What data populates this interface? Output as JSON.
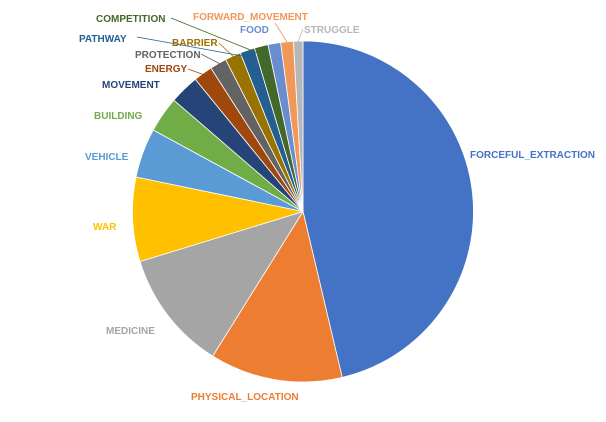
{
  "chart_data": {
    "type": "pie",
    "start_angle_deg": 0,
    "direction": "clockwise",
    "slices": [
      {
        "label": "FORCEFUL_EXTRACTION",
        "value": 46.4,
        "color": "#4472C4"
      },
      {
        "label": "PHYSICAL_LOCATION",
        "value": 12.6,
        "color": "#ED7D31"
      },
      {
        "label": "MEDICINE",
        "value": 11.4,
        "color": "#A5A5A5"
      },
      {
        "label": "WAR",
        "value": 8.0,
        "color": "#FFC000"
      },
      {
        "label": "VEHICLE",
        "value": 4.7,
        "color": "#5B9BD5"
      },
      {
        "label": "BUILDING",
        "value": 3.4,
        "color": "#70AD47"
      },
      {
        "label": "MOVEMENT",
        "value": 2.8,
        "color": "#264478"
      },
      {
        "label": "ENERGY",
        "value": 1.8,
        "color": "#9E480E"
      },
      {
        "label": "PROTECTION",
        "value": 1.6,
        "color": "#636363"
      },
      {
        "label": "BARRIER",
        "value": 1.5,
        "color": "#997300"
      },
      {
        "label": "PATHWAY",
        "value": 1.4,
        "color": "#255E91"
      },
      {
        "label": "COMPETITION",
        "value": 1.3,
        "color": "#43682B"
      },
      {
        "label": "FOOD",
        "value": 1.2,
        "color": "#698ED0"
      },
      {
        "label": "FORWARD_MOVEMENT",
        "value": 1.2,
        "color": "#F1975A"
      },
      {
        "label": "STRUGGLE",
        "value": 0.9,
        "color": "#B7B7B7"
      }
    ]
  }
}
